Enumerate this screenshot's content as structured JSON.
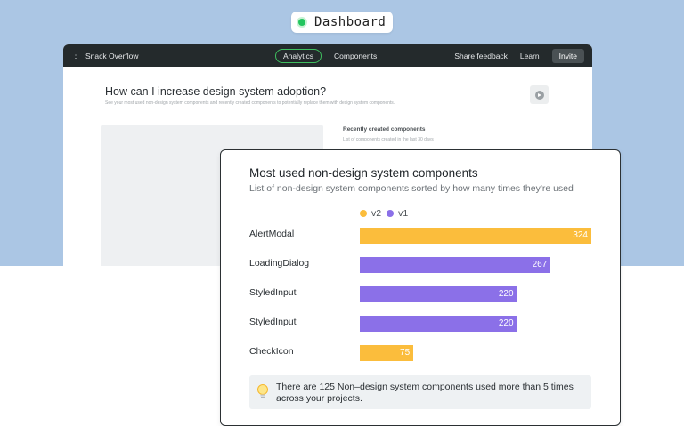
{
  "badge": {
    "label": "Dashboard",
    "status_color": "#22c55e"
  },
  "app": {
    "name": "Snack Overflow",
    "tabs": [
      {
        "label": "Analytics",
        "active": true
      },
      {
        "label": "Components",
        "active": false
      }
    ],
    "actions": {
      "feedback": "Share feedback",
      "learn": "Learn",
      "invite": "Invite"
    }
  },
  "page": {
    "question": "How can I increase design system adoption?",
    "description": "See your most used non-design system components and recently created components to potentially replace them with design system components.",
    "recent": {
      "title": "Recently created components",
      "subtitle": "List of components created in the last 30 days"
    }
  },
  "card": {
    "title": "Most used non-design system components",
    "subtitle": "List of non-design system components sorted by how many times they're used",
    "insight": "There are 125 Non–design system components used more than 5 times across your projects."
  },
  "chart_data": {
    "type": "bar",
    "orientation": "horizontal",
    "title": "Most used non-design system components",
    "legend": [
      {
        "name": "v2",
        "color": "#fbbd3c"
      },
      {
        "name": "v1",
        "color": "#8b70e8"
      }
    ],
    "categories": [
      "AlertModal",
      "LoadingDialog",
      "StyledInput",
      "StyledInput",
      "CheckIcon"
    ],
    "values": [
      324,
      267,
      220,
      220,
      75
    ],
    "series_of_bar": [
      "v2",
      "v1",
      "v1",
      "v1",
      "v2"
    ],
    "xlim": [
      0,
      324
    ]
  }
}
